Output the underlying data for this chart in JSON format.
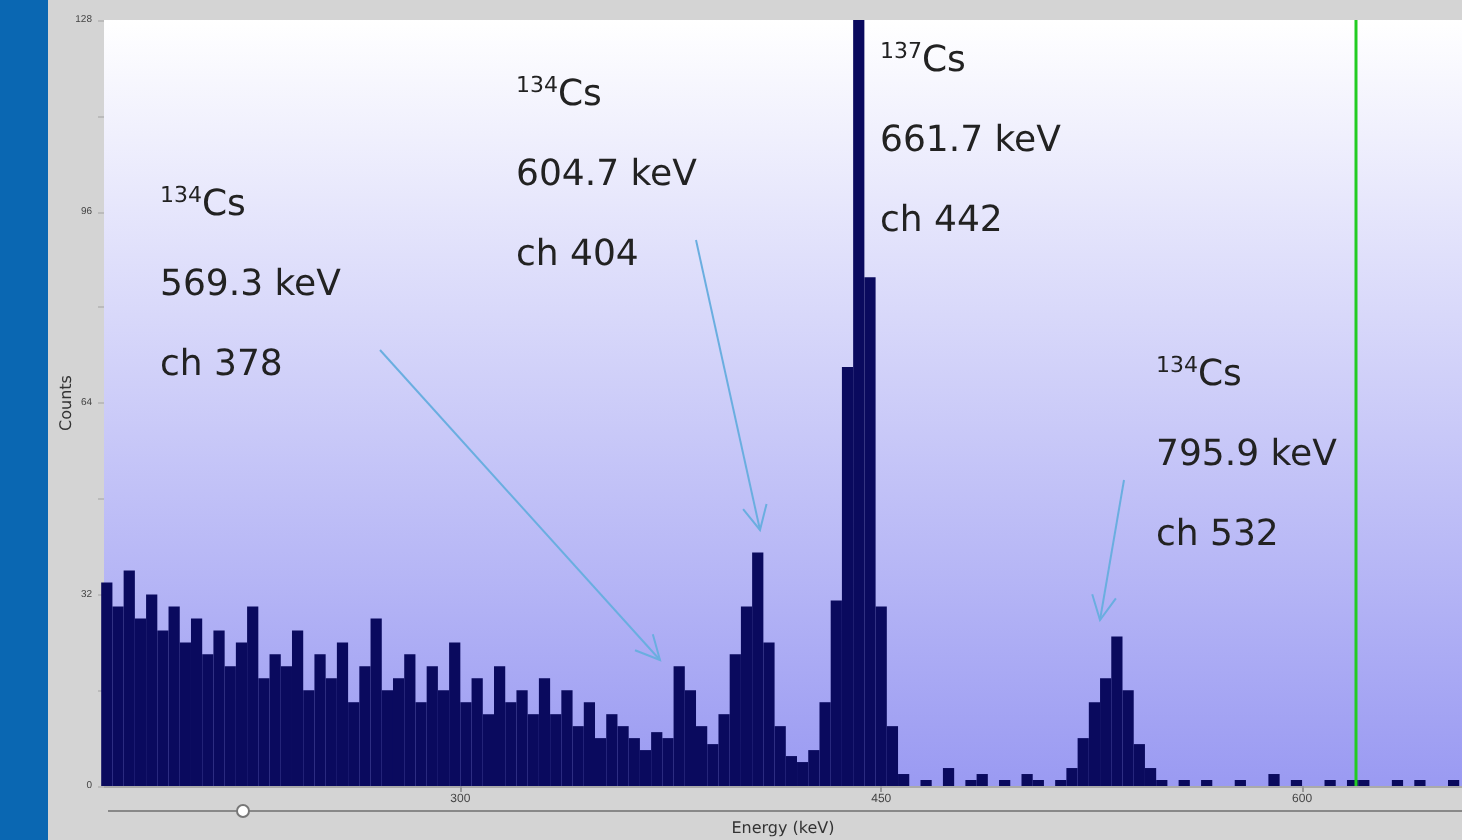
{
  "chart_data": {
    "type": "histogram",
    "xlabel": "Energy (keV)",
    "ylabel": "Counts",
    "bins": [
      172,
      176,
      180,
      184,
      188,
      192,
      196,
      200,
      204,
      208,
      212,
      216,
      220,
      224,
      228,
      232,
      236,
      240,
      244,
      248,
      252,
      256,
      260,
      264,
      268,
      272,
      276,
      280,
      284,
      288,
      292,
      296,
      300,
      304,
      308,
      312,
      316,
      320,
      324,
      328,
      332,
      336,
      340,
      344,
      348,
      352,
      356,
      360,
      364,
      368,
      372,
      376,
      380,
      384,
      388,
      392,
      396,
      400,
      404,
      408,
      412,
      416,
      420,
      424,
      428,
      432,
      436,
      440,
      444,
      448,
      452,
      456,
      460,
      464,
      468,
      472,
      476,
      480,
      484,
      488,
      492,
      496,
      500,
      504,
      508,
      512,
      516,
      520,
      524,
      528,
      532,
      536,
      540,
      544,
      548,
      552,
      556,
      560,
      564,
      568,
      572,
      576,
      580,
      584,
      588,
      592,
      596,
      600,
      604,
      608,
      612,
      616,
      620,
      624,
      628,
      632,
      636,
      640,
      644,
      648,
      652,
      656
    ],
    "values": [
      34,
      30,
      36,
      28,
      32,
      26,
      30,
      24,
      28,
      22,
      26,
      20,
      24,
      30,
      18,
      22,
      20,
      26,
      16,
      22,
      18,
      24,
      14,
      20,
      28,
      16,
      18,
      22,
      14,
      20,
      16,
      24,
      14,
      18,
      12,
      20,
      14,
      16,
      12,
      18,
      12,
      16,
      10,
      14,
      8,
      12,
      10,
      8,
      6,
      9,
      8,
      20,
      16,
      10,
      7,
      12,
      22,
      30,
      39,
      24,
      10,
      5,
      4,
      6,
      14,
      31,
      70,
      128,
      85,
      30,
      10,
      2,
      0,
      1,
      0,
      3,
      0,
      1,
      2,
      0,
      1,
      0,
      2,
      1,
      0,
      1,
      3,
      8,
      14,
      18,
      25,
      16,
      7,
      3,
      1,
      0,
      1,
      0,
      1,
      0,
      0,
      1,
      0,
      0,
      2,
      0,
      1,
      0,
      0,
      1,
      0,
      1,
      1,
      0,
      0,
      1,
      0,
      1,
      0,
      0,
      1
    ],
    "color": "#0a0a5e",
    "xlim": [
      173,
      657
    ],
    "xticks": [
      300,
      450,
      600
    ],
    "ylim": [
      0,
      128
    ],
    "yticks": [
      0,
      {
        "value": 16,
        "label": null
      },
      32,
      {
        "value": 48,
        "label": null
      },
      64,
      {
        "value": 80,
        "label": null
      },
      96,
      {
        "value": 112,
        "label": null
      },
      128
    ],
    "ref_lines": [
      {
        "axis": "x",
        "value": 619,
        "color": "#22cc22"
      }
    ],
    "annotations": [
      "$^{134}$Cs\n569.3 keV\nch 378",
      "$^{134}$Cs\n604.7 keV\nch 404",
      "$^{137}$Cs\n661.7 keV\nch 442",
      "$^{134}$Cs\n795.9 keV\nch 532"
    ]
  }
}
